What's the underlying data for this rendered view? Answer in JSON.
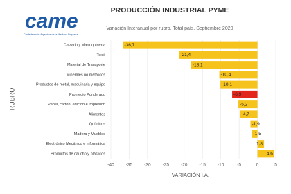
{
  "logo": {
    "text": "came",
    "tagline": "Confederación Argentina de la Mediana Empresa"
  },
  "chart_data": {
    "type": "hbar",
    "title": "PRODUCCIÓN INDUSTRIAL PYME",
    "subtitle": "Variación Interanual por rubro. Total país. Septiembre 2020",
    "x_label": "VARIACIÓN I.A.",
    "y_label": "RUBRO",
    "categories": [
      "Calzado y Marroquinería",
      "Textil",
      "Material de Transporte",
      "Minerales no metálicos",
      "Productos de metal, maquinaria y equipo",
      "Promedio Ponderado",
      "Papel, cartón, edición e impresión",
      "Alimentos",
      "Químicos",
      "Madera y Muebles",
      "Electrónico Mecánico e Informática",
      "Productos de caucho y plásticos"
    ],
    "values": [
      -36.7,
      -21.4,
      -18.1,
      -10.4,
      -10.1,
      -6.9,
      -5.2,
      -4.7,
      -1.9,
      -1.5,
      1.8,
      4.6
    ],
    "value_labels": [
      "-36,7",
      "-21,4",
      "-18,1",
      "-10,4",
      "-10,1",
      "-6,9",
      "-5,2",
      "-4,7",
      "-1,9",
      "-1,5",
      "1,8",
      "4,6"
    ],
    "colors": [
      "#f6c21c",
      "#f6c21c",
      "#f6c21c",
      "#f6c21c",
      "#f6c21c",
      "#e3261c",
      "#f6c21c",
      "#f6c21c",
      "#f6c21c",
      "#f6c21c",
      "#f6c21c",
      "#f6c21c"
    ],
    "xlim": [
      -40,
      5
    ],
    "xticks": [
      -40,
      -35,
      -30,
      -25,
      -20,
      -15,
      -10,
      -5,
      0,
      5
    ],
    "grid": true
  }
}
